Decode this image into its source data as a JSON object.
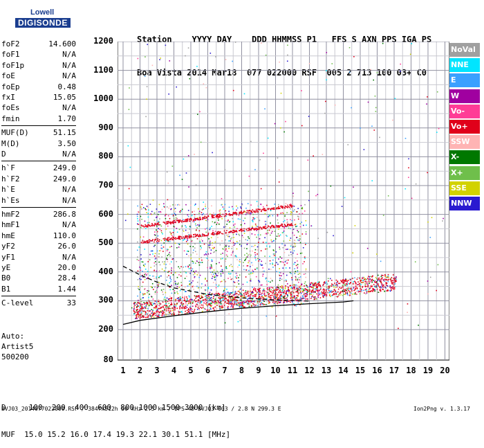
{
  "logo": {
    "line1": "Lowell",
    "line2": "DIGISONDE"
  },
  "header": {
    "row1": "Station    YYYY DAY    DDD HHMMSS P1   FFS S AXN PPS IGA PS",
    "row2": "Boa Vista 2014 Mar18  077 022000 RSF  005 2 713 100 03+ C0"
  },
  "params": [
    {
      "k": "foF2",
      "v": "14.600"
    },
    {
      "k": "foF1",
      "v": "N/A"
    },
    {
      "k": "foF1p",
      "v": "N/A"
    },
    {
      "k": "foE",
      "v": "N/A"
    },
    {
      "k": "foEp",
      "v": "0.48"
    },
    {
      "k": "fxI",
      "v": "15.05"
    },
    {
      "k": "foEs",
      "v": "N/A"
    },
    {
      "k": "fmin",
      "v": "1.70"
    },
    {
      "k": "MUF(D)",
      "v": "51.15"
    },
    {
      "k": "M(D)",
      "v": "3.50"
    },
    {
      "k": "D",
      "v": "N/A"
    },
    {
      "k": "h`F",
      "v": "249.0"
    },
    {
      "k": "h`F2",
      "v": "249.0"
    },
    {
      "k": "h`E",
      "v": "N/A"
    },
    {
      "k": "h`Es",
      "v": "N/A"
    },
    {
      "k": "hmF2",
      "v": "286.8"
    },
    {
      "k": "hmF1",
      "v": "N/A"
    },
    {
      "k": "hmE",
      "v": "110.0"
    },
    {
      "k": "yF2",
      "v": "26.0"
    },
    {
      "k": "yF1",
      "v": "N/A"
    },
    {
      "k": "yE",
      "v": "20.0"
    },
    {
      "k": "B0",
      "v": "28.4"
    },
    {
      "k": "B1",
      "v": "1.44"
    },
    {
      "k": "C-level",
      "v": "33"
    }
  ],
  "auto": [
    "Auto:",
    "Artist5",
    "500200"
  ],
  "y_ticks": [
    "1200",
    "1100",
    "1000",
    "900",
    "800",
    "700",
    "600",
    "500",
    "400",
    "300",
    "200",
    "80"
  ],
  "x_ticks": [
    "1",
    "2",
    "3",
    "4",
    "5",
    "6",
    "7",
    "8",
    "9",
    "10",
    "11",
    "12",
    "13",
    "14",
    "15",
    "16",
    "17",
    "18",
    "19",
    "20"
  ],
  "legend": [
    {
      "label": "NoVal",
      "color": "#a0a0a0"
    },
    {
      "label": "NNE",
      "color": "#00e5ff"
    },
    {
      "label": "E",
      "color": "#3aa0ff"
    },
    {
      "label": "W",
      "color": "#a000a0"
    },
    {
      "label": "Vo-",
      "color": "#ff3c96"
    },
    {
      "label": "Vo+",
      "color": "#e0001a"
    },
    {
      "label": "SSW",
      "color": "#ffb4b4"
    },
    {
      "label": "X-",
      "color": "#007800"
    },
    {
      "label": "X+",
      "color": "#6fbf4b"
    },
    {
      "label": "SSE",
      "color": "#d2d200"
    },
    {
      "label": "NNW",
      "color": "#2a1ad0"
    }
  ],
  "bottom": {
    "row1": "D     100  200  400  600  800 1000 1500 3000 [km]",
    "row2": "MUF  15.0 15.2 16.0 17.4 19.3 22.1 30.1 51.1 [MHz]"
  },
  "footer": "BVJ03_2014077022000.RSF / 384fx512h 50 kHz 2.5 km / DPS-4D BVJ03 003 / 2.8 N 299.3 E",
  "version": "Ion2Png v. 1.3.17"
}
